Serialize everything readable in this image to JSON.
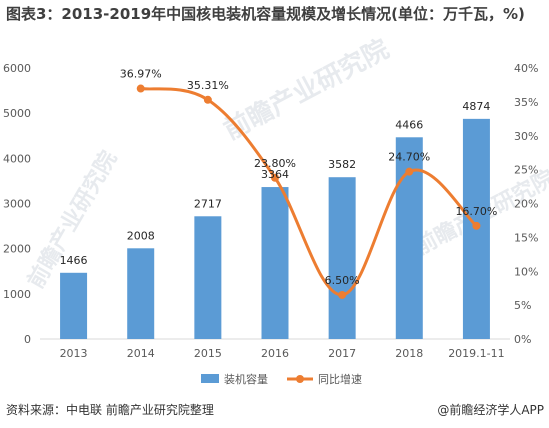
{
  "title": "图表3：2013-2019年中国核电装机容量规模及增长情况(单位：万千瓦，%)",
  "source": "资料来源：中电联 前瞻产业研究院整理",
  "brand": "@前瞻经济学人APP",
  "watermark": "前瞻产业研究院",
  "colors": {
    "bar": "#5b9bd5",
    "line": "#ed7d31",
    "axis": "#d9d9d9",
    "text": "#595959"
  },
  "chart_data": {
    "type": "bar+line",
    "categories": [
      "2013",
      "2014",
      "2015",
      "2016",
      "2017",
      "2018",
      "2019.1-11"
    ],
    "series": [
      {
        "name": "装机容量",
        "type": "bar",
        "axis": "left",
        "values": [
          1466,
          2008,
          2717,
          3364,
          3582,
          4466,
          4874
        ],
        "labels": [
          "1466",
          "2008",
          "2717",
          "3364",
          "3582",
          "4466",
          "4874"
        ]
      },
      {
        "name": "同比增速",
        "type": "line",
        "axis": "right",
        "values": [
          null,
          36.97,
          35.31,
          23.8,
          6.5,
          24.7,
          16.7
        ],
        "labels": [
          "",
          "36.97%",
          "35.31%",
          "23.80%",
          "6.50%",
          "24.70%",
          "16.70%"
        ]
      }
    ],
    "y_left": {
      "min": 0,
      "max": 6000,
      "step": 1000,
      "ticks": [
        "0",
        "1000",
        "2000",
        "3000",
        "4000",
        "5000",
        "6000"
      ]
    },
    "y_right": {
      "min": 0,
      "max": 40,
      "step": 5,
      "ticks": [
        "0%",
        "5%",
        "10%",
        "15%",
        "20%",
        "25%",
        "30%",
        "35%",
        "40%"
      ]
    },
    "grid": false,
    "legend": "bottom-center"
  }
}
